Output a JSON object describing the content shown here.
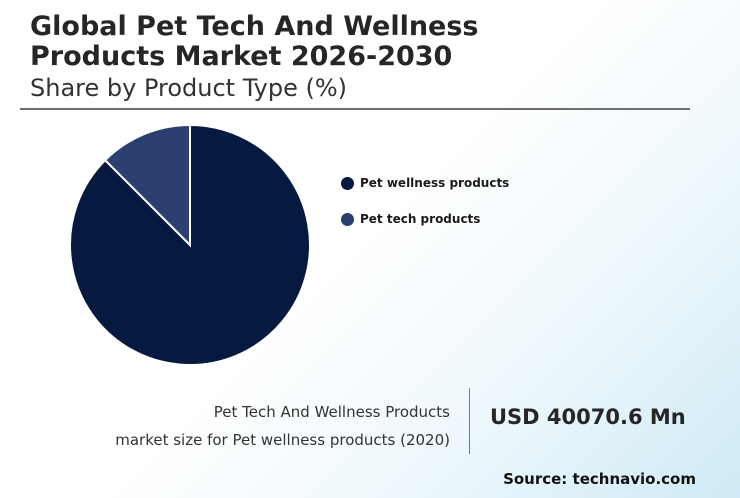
{
  "header": {
    "title_line1": "Global Pet Tech And Wellness",
    "title_line2": "Products Market 2026-2030",
    "subtitle": "Share by Product Type (%)"
  },
  "chart_data": {
    "type": "pie",
    "categories": [
      "Pet wellness products",
      "Pet tech products"
    ],
    "values": [
      87.5,
      12.5
    ],
    "colors": [
      "#061a40",
      "#2b3f70"
    ],
    "legend_position": "right"
  },
  "footer": {
    "caption_line1": "Pet Tech And Wellness Products",
    "caption_line2": "market size for Pet wellness products (2020)",
    "value": "USD 40070.6 Mn",
    "source": "Source: technavio.com"
  }
}
